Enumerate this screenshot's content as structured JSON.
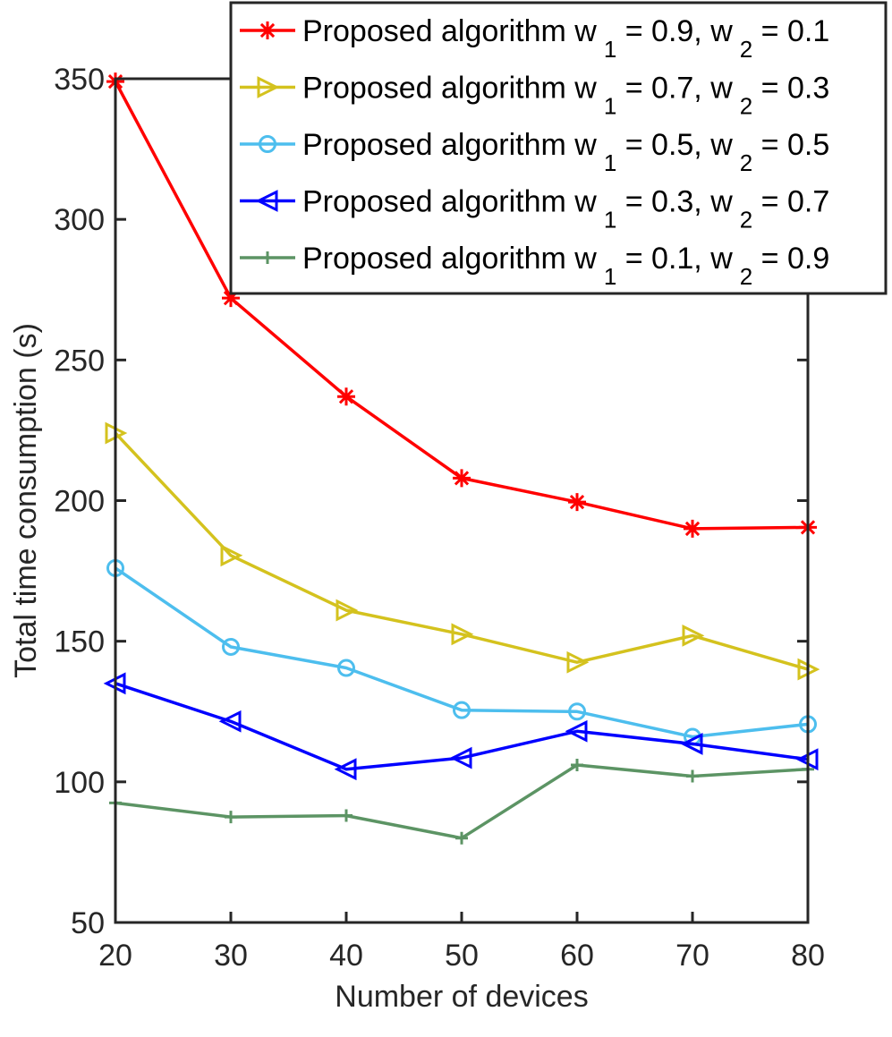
{
  "chart_data": {
    "type": "line",
    "title": "",
    "xlabel": "Number of devices",
    "ylabel": "Total time consumption (s)",
    "x": [
      20,
      30,
      40,
      50,
      60,
      70,
      80
    ],
    "xlim": [
      20,
      80
    ],
    "ylim": [
      50,
      350
    ],
    "xticks": [
      "20",
      "30",
      "40",
      "50",
      "60",
      "70",
      "80"
    ],
    "yticks": [
      "50",
      "100",
      "150",
      "200",
      "250",
      "300",
      "350"
    ],
    "grid": false,
    "legend_position": "top-right",
    "series": [
      {
        "name": "Proposed algorithm w 1 = 0.9, w 2 = 0.1",
        "legend": {
          "prefix": "Proposed algorithm w",
          "sub1": "1",
          "mid": " = 0.9, w",
          "sub2": "2",
          "suffix": " = 0.1"
        },
        "color": "#ff0000",
        "marker": "asterisk",
        "values": [
          349,
          272,
          237,
          208,
          199.5,
          190,
          190.5
        ]
      },
      {
        "name": "Proposed algorithm w 1 = 0.7, w 2 = 0.3",
        "legend": {
          "prefix": "Proposed algorithm w",
          "sub1": "1",
          "mid": " = 0.7, w",
          "sub2": "2",
          "suffix": " = 0.3"
        },
        "color": "#d4c21e",
        "marker": "triangle-right",
        "values": [
          224,
          180.5,
          161,
          152.5,
          142.5,
          152,
          140
        ]
      },
      {
        "name": "Proposed algorithm w 1 = 0.5, w 2 = 0.5",
        "legend": {
          "prefix": "Proposed algorithm w",
          "sub1": "1",
          "mid": " = 0.5, w",
          "sub2": "2",
          "suffix": " = 0.5"
        },
        "color": "#4dbeee",
        "marker": "circle",
        "values": [
          176,
          148,
          140.5,
          125.5,
          125,
          116,
          120.5
        ]
      },
      {
        "name": "Proposed algorithm w 1 = 0.3, w 2 = 0.7",
        "legend": {
          "prefix": "Proposed algorithm w",
          "sub1": "1",
          "mid": " = 0.3, w",
          "sub2": "2",
          "suffix": " = 0.7"
        },
        "color": "#0000ff",
        "marker": "triangle-left",
        "values": [
          135,
          121.5,
          104.5,
          108.5,
          118,
          113.5,
          108
        ]
      },
      {
        "name": "Proposed algorithm w 1 = 0.1, w 2 = 0.9",
        "legend": {
          "prefix": "Proposed algorithm w",
          "sub1": "1",
          "mid": " = 0.1, w",
          "sub2": "2",
          "suffix": " = 0.9"
        },
        "color": "#5c9464",
        "marker": "plus",
        "values": [
          92.5,
          87.5,
          88,
          80,
          106,
          102,
          104.5
        ]
      }
    ]
  }
}
